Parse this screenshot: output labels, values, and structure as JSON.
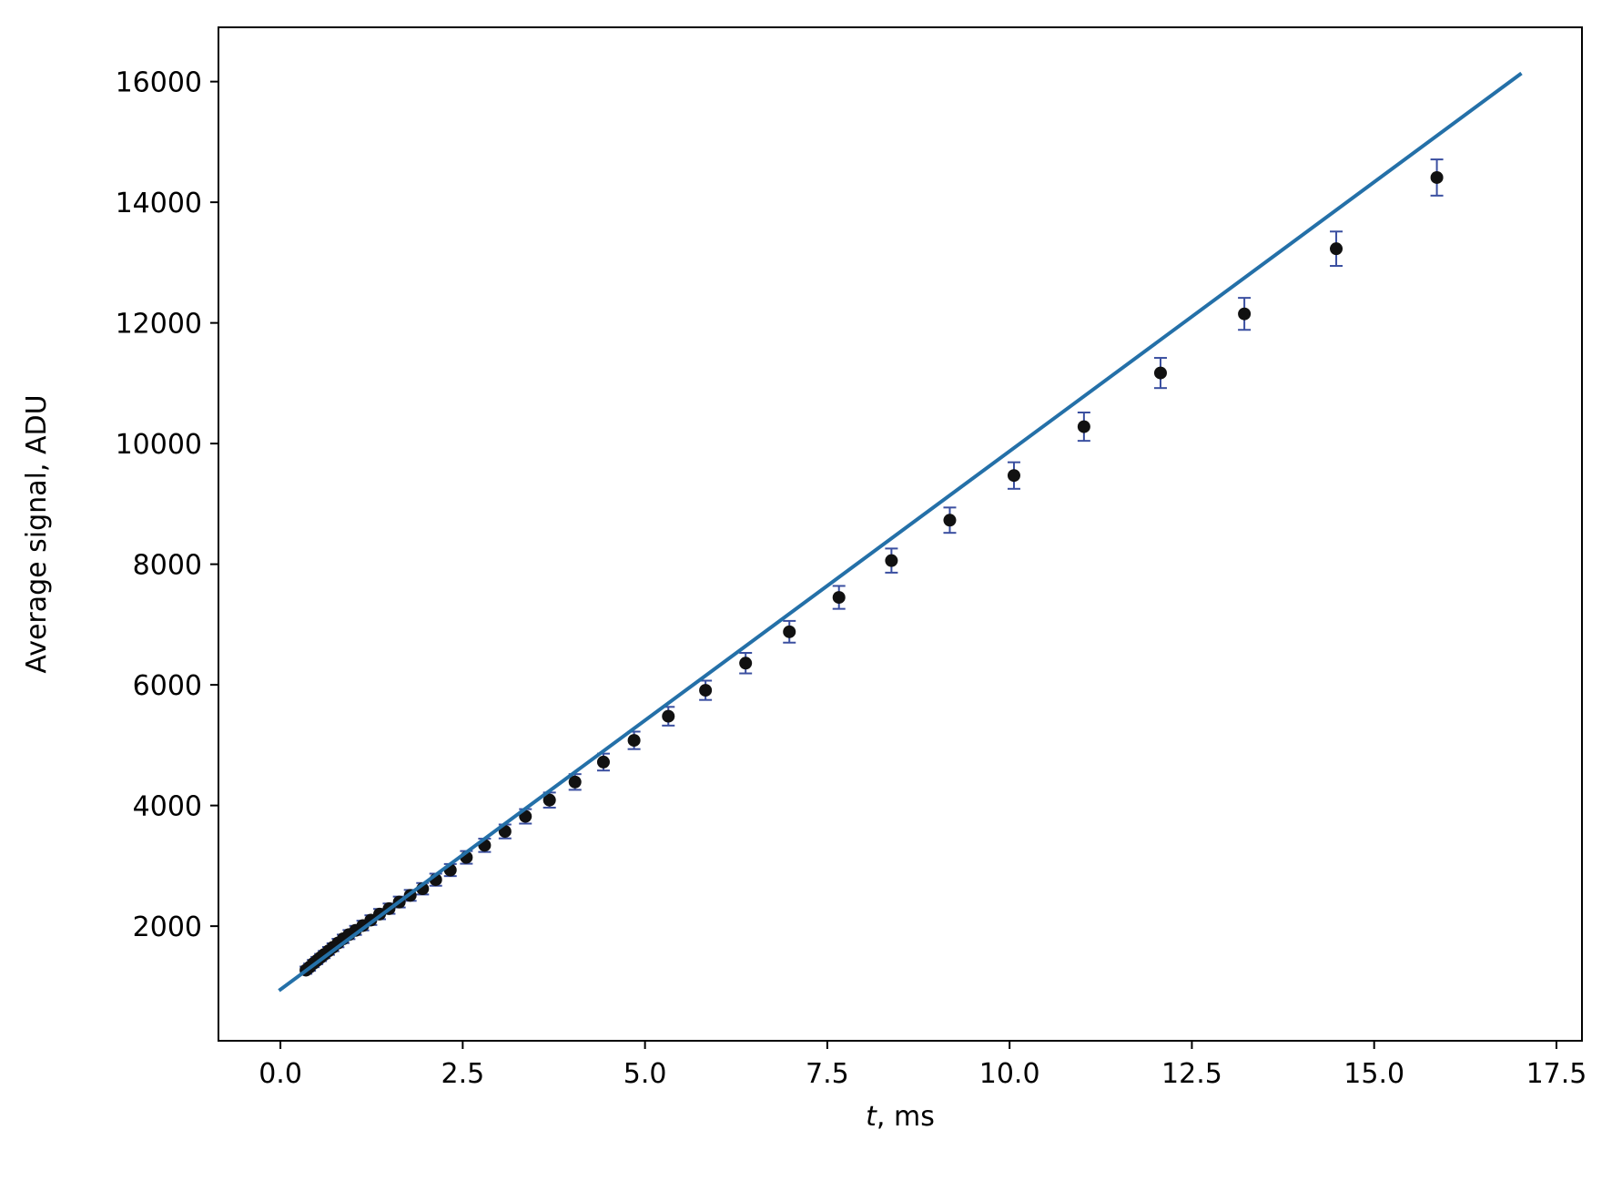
{
  "chart_data": {
    "type": "scatter",
    "title": "",
    "xlabel_var": "t",
    "xlabel_rest": ", ms",
    "ylabel": "Average signal, ADU",
    "xlim": [
      -0.85,
      17.85
    ],
    "ylim": [
      100,
      16900
    ],
    "xticks": [
      0.0,
      2.5,
      5.0,
      7.5,
      10.0,
      12.5,
      15.0,
      17.5
    ],
    "xtick_labels": [
      "0.0",
      "2.5",
      "5.0",
      "7.5",
      "10.0",
      "12.5",
      "15.0",
      "17.5"
    ],
    "yticks": [
      2000,
      4000,
      6000,
      8000,
      10000,
      12000,
      14000,
      16000
    ],
    "ytick_labels": [
      "2000",
      "4000",
      "6000",
      "8000",
      "10000",
      "12000",
      "14000",
      "16000"
    ],
    "grid": false,
    "series": [
      {
        "type": "errorbar-scatter",
        "marker_color": "#111111",
        "errorbar_color": "#3a4fa0",
        "x": [
          0.35,
          0.4,
          0.45,
          0.5,
          0.55,
          0.6,
          0.66,
          0.72,
          0.79,
          0.86,
          0.94,
          1.03,
          1.13,
          1.24,
          1.36,
          1.49,
          1.63,
          1.78,
          1.95,
          2.13,
          2.33,
          2.55,
          2.8,
          3.08,
          3.36,
          3.69,
          4.04,
          4.43,
          4.85,
          5.32,
          5.83,
          6.38,
          6.98,
          7.66,
          8.38,
          9.18,
          10.06,
          11.02,
          12.07,
          13.22,
          14.48,
          15.86
        ],
        "y": [
          1270,
          1320,
          1380,
          1430,
          1480,
          1530,
          1590,
          1650,
          1720,
          1790,
          1860,
          1930,
          2010,
          2100,
          2200,
          2290,
          2400,
          2510,
          2620,
          2770,
          2930,
          3140,
          3340,
          3570,
          3820,
          4090,
          4390,
          4720,
          5080,
          5480,
          5910,
          6360,
          6880,
          7450,
          8060,
          8730,
          9470,
          10280,
          11170,
          12150,
          13230,
          14410
        ],
        "yerr": [
          60,
          60,
          60,
          60,
          60,
          60,
          65,
          65,
          70,
          70,
          75,
          75,
          80,
          80,
          85,
          85,
          90,
          90,
          95,
          100,
          100,
          105,
          110,
          115,
          120,
          125,
          130,
          140,
          145,
          155,
          160,
          170,
          180,
          190,
          200,
          210,
          220,
          235,
          250,
          265,
          285,
          300
        ]
      },
      {
        "type": "line",
        "color": "#2470a8",
        "x": [
          0.0,
          17.0
        ],
        "y": [
          950,
          16120
        ]
      }
    ]
  }
}
